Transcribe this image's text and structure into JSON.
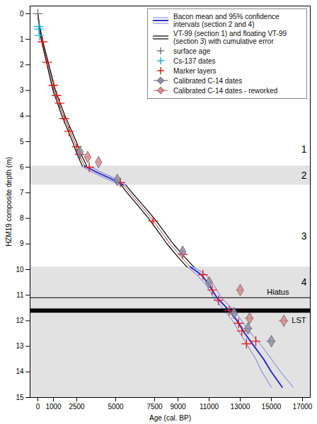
{
  "chart_data": {
    "type": "line",
    "x_label": "Age (cal. BP)",
    "y_label": "HZM19 composite depth (m)",
    "xlim": [
      -500,
      17500
    ],
    "xticks": [
      0,
      1000,
      2500,
      5000,
      7500,
      9000,
      11000,
      13000,
      15000,
      17000
    ],
    "ylim": [
      -0.3,
      15
    ],
    "yticks": [
      0,
      1,
      2,
      3,
      4,
      5,
      6,
      7,
      8,
      9,
      10,
      11,
      12,
      13,
      14,
      15
    ],
    "grid": false,
    "legend": "top-right",
    "bands": [
      [
        5.95,
        6.7
      ],
      [
        9.9,
        15
      ]
    ],
    "sections": [
      {
        "label": "1",
        "from": 0,
        "to": 5.95,
        "label_depth": 5.3
      },
      {
        "label": "2",
        "from": 5.95,
        "to": 6.7,
        "label_depth": 6.33
      },
      {
        "label": "3",
        "from": 6.7,
        "to": 9.9,
        "label_depth": 8.7
      },
      {
        "label": "4",
        "from": 9.9,
        "to": 15,
        "label_depth": 10.5
      }
    ],
    "lines": [
      {
        "label": "Hiatus",
        "y": 11.1,
        "line_style": "solid"
      },
      {
        "label": "LST",
        "y": 11.6,
        "line_style": "thick"
      }
    ],
    "series": [
      {
        "name": "Bacon mean and 95% confidence intervals (section 2 and 4)",
        "type": "line",
        "color": "#2b2bd0",
        "y": [
          5.95,
          6.2,
          6.45,
          6.7,
          null,
          9.9,
          10.2,
          10.6,
          11.1,
          11.6,
          12,
          12.5,
          13,
          13.5,
          14,
          14.6
        ],
        "x": [
          3000,
          3800,
          4700,
          5500,
          null,
          9800,
          10500,
          11000,
          11500,
          12300,
          12800,
          13300,
          13900,
          14500,
          15000,
          15700
        ],
        "x_lower": [
          2800,
          3500,
          4400,
          5300,
          null,
          9600,
          10200,
          10800,
          11300,
          12000,
          12500,
          13000,
          13500,
          14000,
          14400,
          15000
        ],
        "x_upper": [
          3300,
          4100,
          5000,
          5700,
          null,
          10000,
          10800,
          11300,
          11800,
          12600,
          13100,
          13700,
          14400,
          15000,
          15600,
          16400
        ]
      },
      {
        "name": "VT-99 (section 1) and floating VT-99 (section 3) with cumulative error",
        "type": "line",
        "color": "#000000",
        "y": [
          0,
          0.5,
          1,
          1.5,
          2,
          2.5,
          3,
          3.5,
          4,
          4.5,
          5,
          5.5,
          5.95,
          null,
          6.7,
          7,
          7.5,
          8,
          8.5,
          9,
          9.5,
          9.9
        ],
        "x": [
          0,
          100,
          250,
          450,
          650,
          850,
          1050,
          1350,
          1650,
          2000,
          2350,
          2650,
          3000,
          null,
          5500,
          5900,
          6600,
          7300,
          7900,
          8500,
          9200,
          9800
        ],
        "x_error": [
          0,
          20,
          40,
          50,
          60,
          70,
          80,
          90,
          100,
          110,
          120,
          130,
          140,
          null,
          150,
          160,
          170,
          180,
          190,
          200,
          210,
          220
        ]
      },
      {
        "name": "surface age",
        "type": "scatter",
        "marker": "plus",
        "color": "#777777",
        "x": [
          0
        ],
        "y": [
          0
        ]
      },
      {
        "name": "Cs-137 dates",
        "type": "scatter",
        "marker": "plus",
        "color": "#22b5dc",
        "x": [
          50,
          70,
          100
        ],
        "y": [
          0.5,
          0.6,
          0.85
        ]
      },
      {
        "name": "Marker layers",
        "type": "scatter",
        "marker": "plus",
        "color": "#e0201b",
        "x": [
          300,
          600,
          1000,
          1200,
          1400,
          1700,
          2000,
          2500,
          2700,
          3300,
          5300,
          7400,
          9300,
          10600,
          11200,
          11600,
          12300,
          12900,
          13100,
          13400,
          14000
        ],
        "y": [
          1.1,
          1.9,
          2.8,
          3.2,
          3.5,
          4.1,
          4.6,
          5.2,
          5.5,
          6.0,
          6.6,
          8.1,
          9.4,
          10.2,
          10.8,
          11.2,
          11.6,
          12.1,
          12.4,
          12.9,
          12.8
        ]
      },
      {
        "name": "Calibrated C-14 dates",
        "type": "scatter",
        "marker": "diamond",
        "color": "#8e8ea6",
        "x": [
          2700,
          5100,
          9300,
          11000,
          12600,
          13500,
          15000
        ],
        "y": [
          5.4,
          6.5,
          9.3,
          10.5,
          11.7,
          12.3,
          12.8
        ],
        "x_error": [
          150,
          150,
          200,
          200,
          250,
          300,
          300
        ]
      },
      {
        "name": "Calibrated C-14 dates - reworked",
        "type": "scatter",
        "marker": "diamond",
        "color": "#d9868a",
        "x": [
          3200,
          3900,
          13000,
          13600,
          15800
        ],
        "y": [
          5.6,
          5.8,
          10.8,
          11.9,
          12.0
        ],
        "x_error": [
          150,
          150,
          250,
          300,
          300
        ]
      }
    ]
  }
}
